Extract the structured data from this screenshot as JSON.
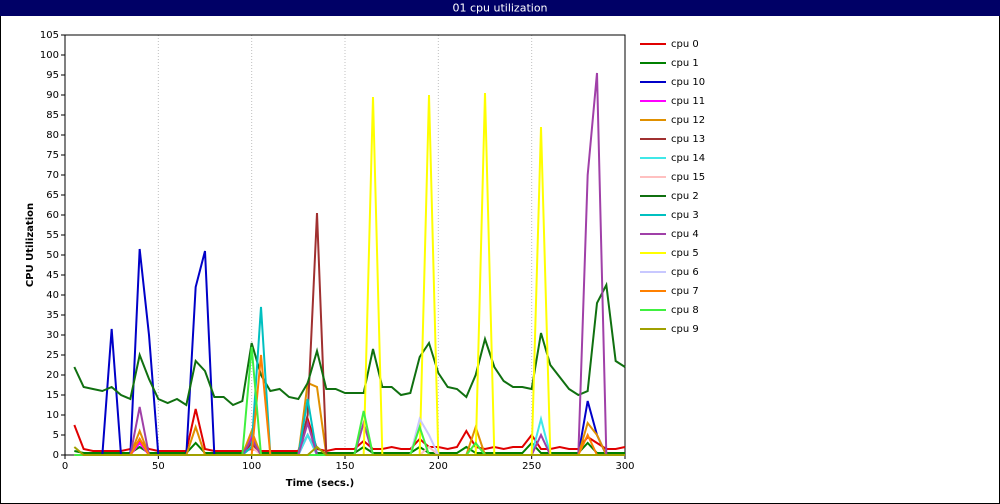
{
  "chart_data": {
    "type": "line",
    "title": "01 cpu utilization",
    "x_label": "Time (secs.)",
    "y_label": "CPU Utilization",
    "xlim": [
      0,
      300
    ],
    "xticks": [
      0,
      50,
      100,
      150,
      200,
      250,
      300
    ],
    "ylim": [
      0,
      105
    ],
    "yticks": [
      0,
      5,
      10,
      15,
      20,
      25,
      30,
      35,
      40,
      45,
      50,
      55,
      60,
      65,
      70,
      75,
      80,
      85,
      90,
      95,
      100,
      105
    ],
    "grid": "x",
    "legend": "right",
    "x": [
      5,
      10,
      15,
      20,
      25,
      30,
      35,
      40,
      45,
      50,
      55,
      60,
      65,
      70,
      75,
      80,
      85,
      90,
      95,
      100,
      105,
      110,
      115,
      120,
      125,
      130,
      135,
      140,
      145,
      150,
      155,
      160,
      165,
      170,
      175,
      180,
      185,
      190,
      195,
      200,
      205,
      210,
      215,
      220,
      225,
      230,
      235,
      240,
      245,
      250,
      255,
      260,
      265,
      270,
      275,
      280,
      285,
      290,
      295,
      300
    ],
    "series": [
      {
        "name": "cpu 0",
        "color": "#e00000",
        "values": [
          7.5,
          1.5,
          1,
          1,
          1,
          1,
          1.5,
          3.5,
          1.5,
          1,
          1,
          1,
          1,
          11.5,
          1.5,
          1,
          1,
          1,
          1,
          1.5,
          1,
          1,
          1,
          1,
          1,
          9,
          1.5,
          1,
          1.5,
          1.5,
          1.5,
          3.5,
          1.5,
          1.5,
          2,
          1.5,
          1.5,
          4,
          2,
          2,
          1.5,
          2,
          6,
          2,
          1.5,
          2,
          1.5,
          2,
          2,
          5,
          1.5,
          1.5,
          2,
          1.5,
          1.5,
          4.5,
          3,
          1.5,
          1.5,
          2
        ]
      },
      {
        "name": "cpu 1",
        "color": "#008000",
        "values": [
          1,
          0.5,
          0.5,
          0.5,
          0.5,
          0.5,
          0.5,
          2,
          0.5,
          0.5,
          0.5,
          0.5,
          0.5,
          3,
          0.5,
          0.5,
          0.5,
          0.5,
          0.5,
          3,
          0.5,
          0.5,
          0.5,
          0.5,
          0.5,
          5,
          0.5,
          0.5,
          0.5,
          0.5,
          0.5,
          2,
          0.5,
          0.5,
          0.5,
          0.5,
          0.5,
          2,
          0.5,
          0.5,
          0.5,
          0.5,
          2,
          0.5,
          0.5,
          0.5,
          0.5,
          0.5,
          0.5,
          3,
          0.5,
          0.5,
          0.5,
          0.5,
          0.5,
          3,
          0.5,
          0.5,
          0.5,
          0.5
        ]
      },
      {
        "name": "cpu 10",
        "color": "#0000c8",
        "values": [
          0,
          0,
          0,
          0,
          31.5,
          0,
          0,
          51.5,
          30,
          0,
          0,
          0,
          0,
          42,
          51,
          0,
          0,
          0,
          0,
          0,
          0,
          0,
          0,
          0,
          0,
          0,
          0,
          0,
          0,
          0,
          0,
          0,
          0,
          0,
          0,
          0,
          0,
          0,
          0,
          0,
          0,
          0,
          0,
          0,
          0,
          0,
          0,
          0,
          0,
          0,
          0,
          0,
          0,
          0,
          0,
          13.5,
          5,
          0,
          0,
          0
        ]
      },
      {
        "name": "cpu 11",
        "color": "#ff00ff",
        "values": [
          0,
          0,
          0,
          0,
          0,
          0,
          0,
          3,
          0,
          0,
          0,
          0,
          0,
          0,
          0,
          0,
          0,
          0,
          0,
          5,
          0,
          0,
          0,
          0,
          0,
          5,
          0,
          0,
          0,
          0,
          0,
          0,
          0,
          0,
          0,
          0,
          0,
          0,
          0,
          0,
          0,
          0,
          0,
          0,
          0,
          0,
          0,
          0,
          0,
          0,
          0,
          0,
          0,
          0,
          0,
          0,
          0,
          0,
          0,
          0
        ]
      },
      {
        "name": "cpu 12",
        "color": "#e09000",
        "values": [
          0,
          0,
          0,
          0,
          0,
          0,
          0,
          6,
          0,
          0,
          0,
          0,
          0,
          7,
          0,
          0,
          0,
          0,
          0,
          6,
          0,
          0,
          0,
          0,
          0,
          18,
          17,
          0,
          0,
          0,
          0,
          0,
          0,
          0,
          0,
          0,
          0,
          0,
          0,
          0,
          0,
          0,
          0,
          7,
          0,
          0,
          0,
          0,
          0,
          0,
          0,
          0,
          0,
          0,
          0,
          8,
          5,
          0,
          0,
          0
        ]
      },
      {
        "name": "cpu 13",
        "color": "#a03030",
        "values": [
          0,
          0,
          0,
          0,
          0,
          0,
          0,
          4,
          0,
          0,
          0,
          0,
          0,
          0,
          0,
          0,
          0,
          0,
          0,
          3,
          0,
          0,
          0,
          0,
          0,
          10,
          60.5,
          0,
          0,
          0,
          0,
          0,
          0,
          0,
          0,
          0,
          0,
          0,
          0,
          0,
          0,
          0,
          0,
          0,
          0,
          0,
          0,
          0,
          0,
          0,
          0,
          0,
          0,
          0,
          0,
          0,
          0,
          0,
          0,
          0
        ]
      },
      {
        "name": "cpu 14",
        "color": "#40e8e8",
        "values": [
          0,
          0,
          0,
          0,
          0,
          0,
          0,
          0,
          0,
          0,
          0,
          0,
          0,
          0,
          0,
          0,
          0,
          0,
          0,
          0,
          0,
          0,
          0,
          0,
          0,
          5,
          0,
          0,
          0,
          0,
          0,
          0,
          0,
          0,
          0,
          0,
          0,
          0,
          0,
          0,
          0,
          0,
          0,
          0,
          0,
          0,
          0,
          0,
          0,
          0,
          9,
          0,
          0,
          0,
          0,
          0,
          0,
          0,
          0,
          0
        ]
      },
      {
        "name": "cpu 15",
        "color": "#ffc0c0",
        "values": [
          0,
          0,
          0,
          0,
          0,
          0,
          0,
          0,
          0,
          0,
          0,
          0,
          0,
          0,
          0,
          0,
          0,
          0,
          0,
          2,
          0,
          0,
          0,
          0,
          0,
          0,
          0,
          0,
          0,
          0,
          0,
          0,
          0,
          0,
          0,
          0,
          0,
          0,
          2,
          0,
          0,
          0,
          0,
          0,
          0,
          0,
          0,
          0,
          0,
          0,
          0,
          0,
          0,
          0,
          0,
          0,
          0,
          0,
          0,
          0
        ]
      },
      {
        "name": "cpu 2",
        "color": "#107010",
        "values": [
          22,
          17,
          16.5,
          16,
          17,
          15,
          14,
          25,
          19,
          14,
          13,
          14,
          12.5,
          23.5,
          21,
          14.5,
          14.5,
          12.5,
          13.5,
          28,
          20,
          16,
          16.5,
          14.5,
          14,
          18,
          26,
          16.5,
          16.5,
          15.5,
          15.5,
          15.5,
          26.5,
          17,
          17,
          15,
          15.5,
          24.5,
          28,
          20.5,
          17,
          16.5,
          14.5,
          20,
          29,
          22,
          18.5,
          17,
          17,
          16.5,
          30.5,
          22.5,
          19.5,
          16.5,
          15,
          16,
          38,
          42.5,
          23.5,
          22
        ]
      },
      {
        "name": "cpu 3",
        "color": "#00c0c0",
        "values": [
          0,
          0,
          0,
          0,
          0,
          0,
          0,
          0,
          0,
          0,
          0,
          0,
          0,
          0,
          0,
          0,
          0,
          0,
          0,
          2,
          37,
          0,
          0,
          0,
          0,
          14,
          0,
          0,
          0,
          0,
          0,
          0,
          0,
          0,
          0,
          0,
          0,
          0,
          0,
          0,
          0,
          0,
          0,
          0,
          0,
          0,
          0,
          0,
          0,
          0,
          0,
          0,
          0,
          0,
          0,
          0,
          0,
          0,
          0,
          0
        ]
      },
      {
        "name": "cpu 4",
        "color": "#a040a8",
        "values": [
          0,
          0,
          0,
          0,
          0,
          0,
          0,
          12,
          0,
          0,
          0,
          0,
          0,
          0,
          0,
          0,
          0,
          0,
          0,
          4,
          0,
          0,
          0,
          0,
          0,
          8,
          0,
          0,
          0,
          0,
          0,
          8,
          0,
          0,
          0,
          0,
          0,
          0,
          0,
          0,
          0,
          0,
          0,
          0,
          0,
          0,
          0,
          0,
          0,
          0,
          5,
          0,
          0,
          0,
          0,
          70,
          95.5,
          0,
          0,
          0
        ]
      },
      {
        "name": "cpu 5",
        "color": "#ffff00",
        "values": [
          0,
          0,
          0,
          0,
          0,
          0,
          0,
          0,
          0,
          0,
          0,
          0,
          0,
          0,
          0,
          0,
          0,
          0,
          0,
          0,
          0,
          0,
          0,
          0,
          0,
          0,
          0,
          0,
          0,
          0,
          0,
          0,
          89.5,
          0,
          0,
          0,
          0,
          0,
          90,
          0,
          0,
          0,
          0,
          0,
          90.5,
          0,
          0,
          0,
          0,
          0,
          82,
          0,
          0,
          0,
          0,
          0,
          0,
          0,
          0,
          0
        ]
      },
      {
        "name": "cpu 6",
        "color": "#c8c8ff",
        "values": [
          0,
          0,
          0,
          0,
          0,
          0,
          0,
          0,
          0,
          0,
          0,
          0,
          0,
          0,
          0,
          0,
          0,
          0,
          0,
          0,
          0,
          0,
          0,
          0,
          0,
          0,
          0,
          0,
          0,
          0,
          0,
          0,
          0,
          0,
          0,
          0,
          0,
          9,
          5,
          0,
          0,
          0,
          0,
          0,
          0,
          0,
          0,
          0,
          0,
          0,
          0,
          0,
          0,
          0,
          0,
          0,
          0,
          0,
          0,
          0
        ]
      },
      {
        "name": "cpu 7",
        "color": "#ff8000",
        "values": [
          0,
          0,
          0,
          0,
          0,
          0,
          0,
          4,
          0,
          0,
          0,
          0,
          0,
          0,
          0,
          0,
          0,
          0,
          0,
          0,
          25,
          0,
          0,
          0,
          0,
          0,
          0,
          0,
          0,
          0,
          0,
          0,
          0,
          0,
          0,
          0,
          0,
          0,
          0,
          0,
          0,
          0,
          0,
          0,
          0,
          0,
          0,
          0,
          0,
          0,
          0,
          0,
          0,
          0,
          0,
          5,
          0,
          0,
          0,
          0
        ]
      },
      {
        "name": "cpu 8",
        "color": "#40f040",
        "values": [
          0,
          0,
          0,
          0,
          0,
          0,
          0,
          0,
          0,
          0,
          0,
          0,
          0,
          0,
          0,
          0,
          0,
          0,
          0,
          27,
          0,
          0,
          0,
          0,
          0,
          0,
          0,
          0,
          0,
          0,
          0,
          11,
          0,
          0,
          0,
          0,
          0,
          7,
          0,
          0,
          0,
          0,
          0,
          3,
          0,
          0,
          0,
          0,
          0,
          0,
          0,
          0,
          0,
          0,
          0,
          0,
          0,
          0,
          0,
          0
        ]
      },
      {
        "name": "cpu 9",
        "color": "#a0a000",
        "values": [
          2,
          0,
          0,
          0,
          0,
          0,
          0,
          0,
          0,
          0,
          0,
          0,
          0,
          0,
          0,
          0,
          0,
          0,
          0,
          0,
          0,
          0,
          0,
          0,
          0,
          0,
          2,
          0,
          0,
          0,
          0,
          0,
          0,
          0,
          0,
          0,
          0,
          0,
          0,
          0,
          0,
          0,
          0,
          0,
          0,
          0,
          0,
          0,
          0,
          0,
          0,
          0,
          0,
          0,
          0,
          0,
          0,
          0,
          0,
          0
        ]
      }
    ]
  }
}
